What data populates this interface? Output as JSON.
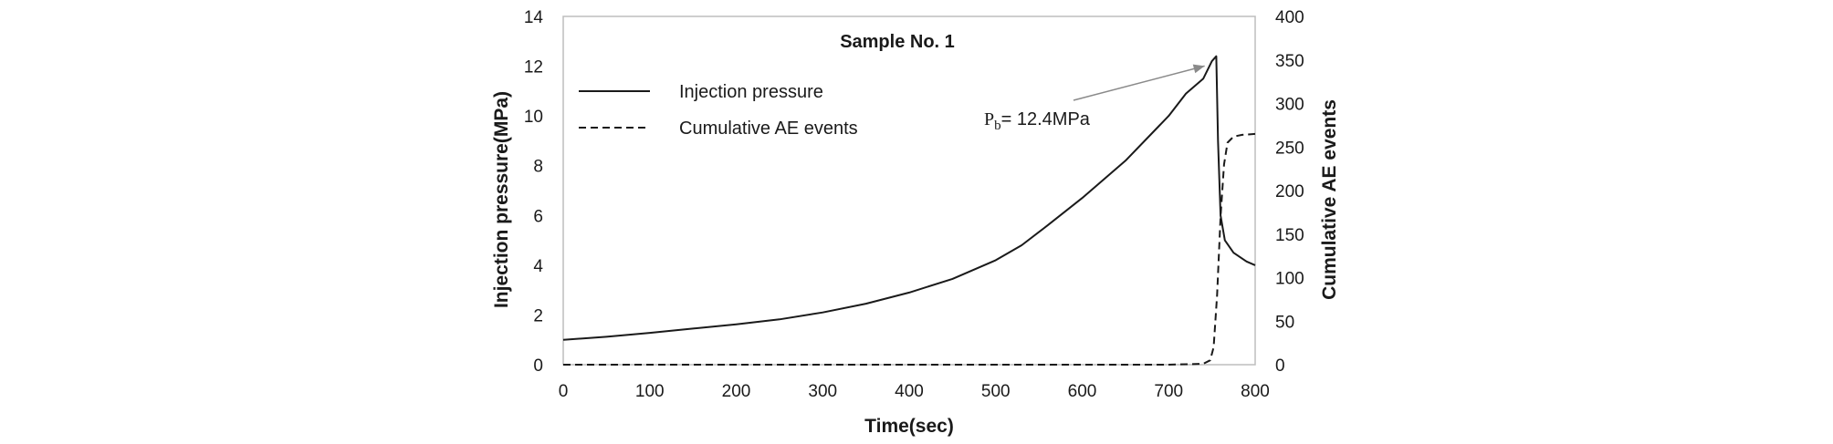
{
  "chart_data": {
    "type": "line",
    "title": "Sample No. 1",
    "xlabel": "Time(sec)",
    "ylabel_left": "Injection pressure(MPa)",
    "ylabel_right": "Cumulative AE events",
    "xlim": [
      0,
      800
    ],
    "ylim_left": [
      0,
      14
    ],
    "ylim_right": [
      0,
      400
    ],
    "x_ticks": [
      "0",
      "100",
      "200",
      "300",
      "400",
      "500",
      "600",
      "700",
      "800"
    ],
    "y_left_ticks": [
      "0",
      "2",
      "4",
      "6",
      "8",
      "10",
      "12",
      "14"
    ],
    "y_right_ticks": [
      "0",
      "50",
      "100",
      "150",
      "200",
      "250",
      "300",
      "350",
      "400"
    ],
    "grid": false,
    "legend_position": "top-left",
    "series": [
      {
        "name": "Injection pressure",
        "axis": "left",
        "style": "solid",
        "color": "#1a1a1a",
        "x": [
          0,
          50,
          100,
          150,
          200,
          250,
          300,
          350,
          400,
          450,
          500,
          530,
          560,
          600,
          650,
          700,
          720,
          740,
          750,
          755,
          757,
          760,
          765,
          775,
          790,
          800
        ],
        "y": [
          1.0,
          1.12,
          1.28,
          1.45,
          1.62,
          1.82,
          2.1,
          2.45,
          2.9,
          3.45,
          4.2,
          4.8,
          5.6,
          6.7,
          8.2,
          10.0,
          10.9,
          11.5,
          12.2,
          12.4,
          9.0,
          6.0,
          5.0,
          4.5,
          4.15,
          4.0
        ]
      },
      {
        "name": "Cumulative AE events",
        "axis": "right",
        "style": "dashed",
        "color": "#1a1a1a",
        "x": [
          0,
          700,
          740,
          748,
          752,
          756,
          760,
          764,
          768,
          775,
          785,
          800
        ],
        "y": [
          0,
          0,
          1,
          5,
          20,
          80,
          170,
          230,
          255,
          262,
          264,
          265
        ]
      }
    ],
    "annotations": [
      {
        "label": "P",
        "subscript": "b",
        "value_text": "= 12.4MPa",
        "points_to": {
          "x": 750,
          "y": 12.3
        }
      }
    ]
  }
}
